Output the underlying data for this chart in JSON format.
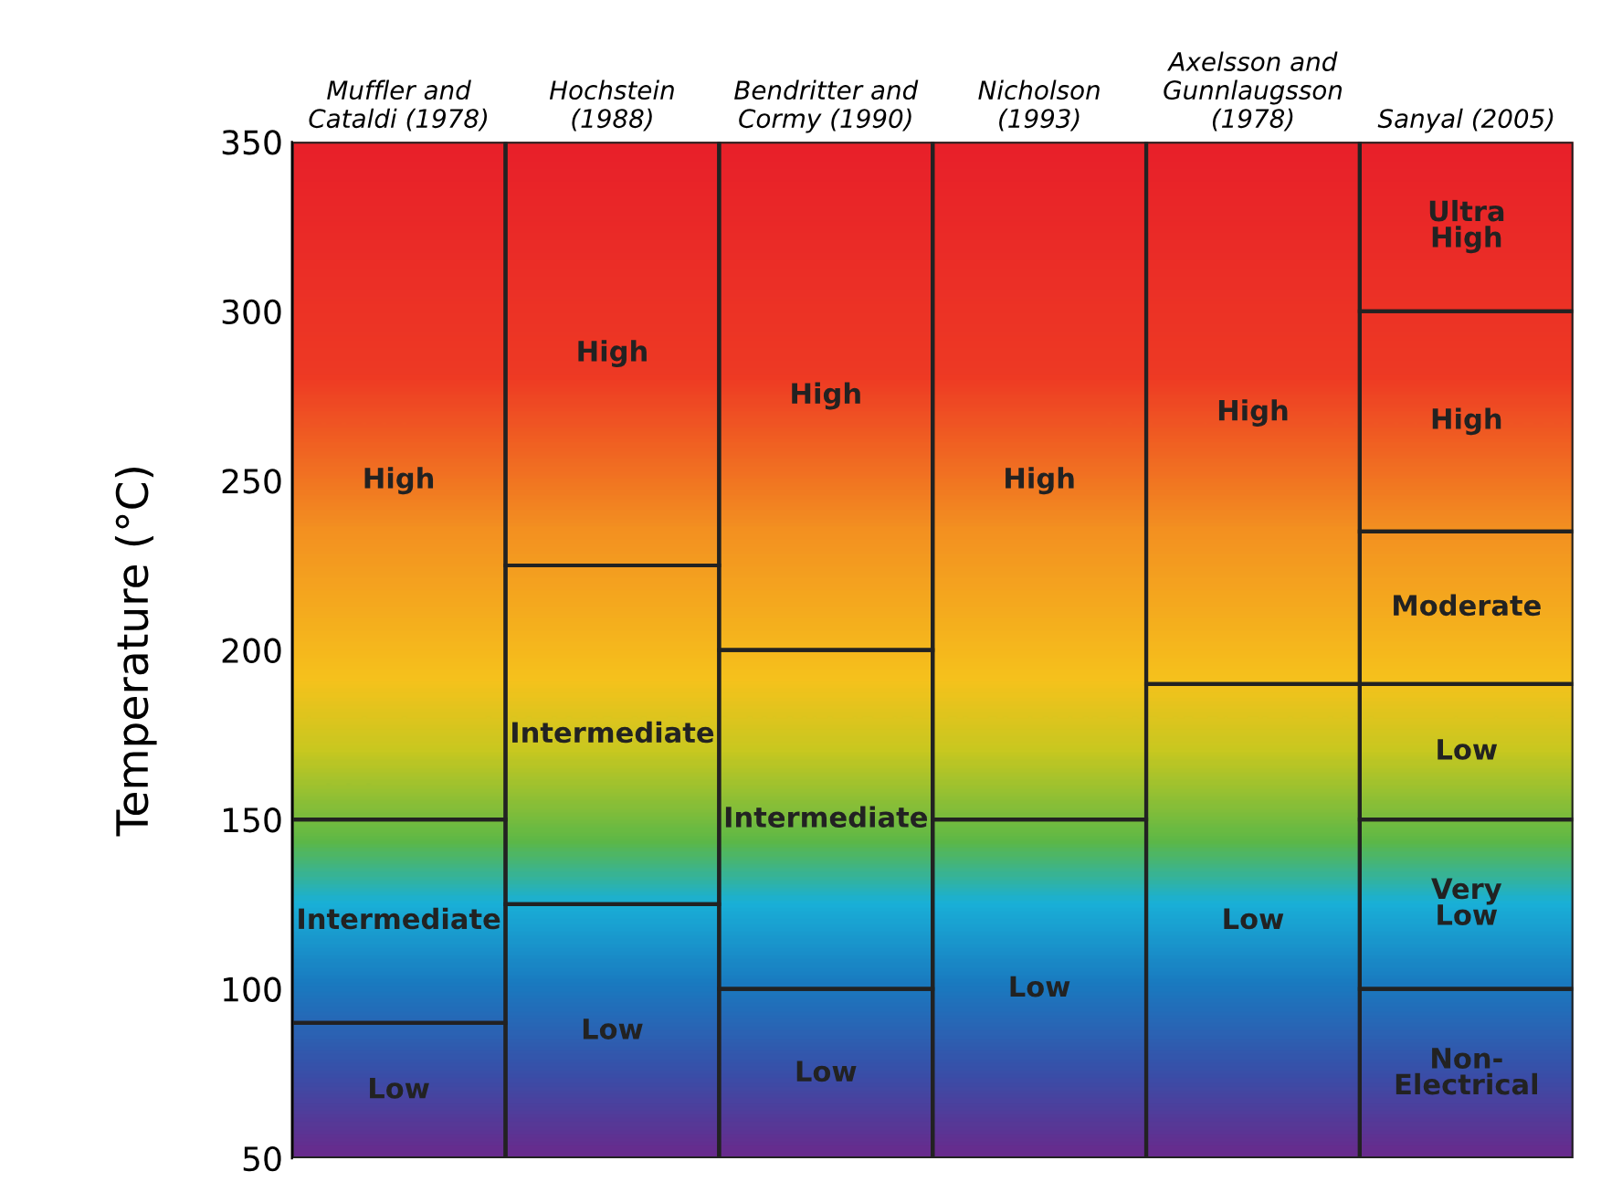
{
  "chart_data": {
    "type": "bar",
    "ylabel": "Temperature (°C)",
    "categories": [
      "Muffler and\nCataldi (1978)",
      "Hochstein\n(1988)",
      "Bendritter and\nCormy (1990)",
      "Nicholson\n(1993)",
      "Axelsson and\nGunnlaugsson\n(1978)",
      "Sanyal (2005)"
    ],
    "series": [
      {
        "base": [
          50,
          50,
          50,
          50,
          50,
          50
        ],
        "values": [
          40,
          75,
          50,
          100,
          140,
          50
        ],
        "value_labels": [
          "Low",
          "Low",
          "Low",
          "Low",
          "Low",
          "Non-\nElectrical"
        ]
      },
      {
        "base": [
          90,
          125,
          100,
          150,
          190,
          100
        ],
        "values": [
          60,
          100,
          100,
          200,
          160,
          50
        ],
        "value_labels": [
          "Intermediate",
          "Intermediate",
          "Intermediate",
          "High",
          "High",
          "Very\nLow"
        ]
      },
      {
        "base": [
          150,
          225,
          200,
          null,
          null,
          150
        ],
        "values": [
          200,
          125,
          150,
          null,
          null,
          40
        ],
        "value_labels": [
          "High",
          "High",
          "High",
          null,
          null,
          "Low"
        ]
      },
      {
        "base": [
          null,
          null,
          null,
          null,
          null,
          190
        ],
        "values": [
          null,
          null,
          null,
          null,
          null,
          45
        ],
        "value_labels": [
          null,
          null,
          null,
          null,
          null,
          "Moderate"
        ]
      },
      {
        "base": [
          null,
          null,
          null,
          null,
          null,
          235
        ],
        "values": [
          null,
          null,
          null,
          null,
          null,
          65
        ],
        "value_labels": [
          null,
          null,
          null,
          null,
          null,
          "High"
        ]
      },
      {
        "base": [
          null,
          null,
          null,
          null,
          null,
          300
        ],
        "values": [
          null,
          null,
          null,
          null,
          null,
          50
        ],
        "value_labels": [
          null,
          null,
          null,
          null,
          null,
          "Ultra\nHigh"
        ]
      }
    ],
    "ylim": [
      50,
      350
    ],
    "yticks": [
      50,
      100,
      150,
      200,
      250,
      300,
      350
    ],
    "grid": false,
    "legend": false
  }
}
